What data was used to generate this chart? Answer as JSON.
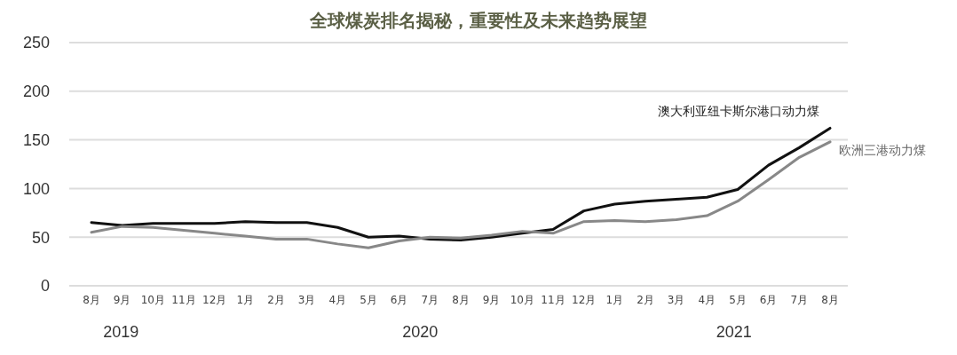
{
  "chart_data": {
    "type": "line",
    "title": "全球煤炭排名揭秘，重要性及未来趋势展望",
    "categories": [
      "8月",
      "9月",
      "10月",
      "11月",
      "12月",
      "1月",
      "2月",
      "3月",
      "4月",
      "5月",
      "6月",
      "7月",
      "8月",
      "9月",
      "10月",
      "11月",
      "12月",
      "1月",
      "2月",
      "3月",
      "4月",
      "5月",
      "6月",
      "7月",
      "8月"
    ],
    "series": [
      {
        "name": "澳大利亚纽卡斯尔港口动力煤",
        "color": "#111111",
        "values": [
          65,
          62,
          64,
          64,
          64,
          66,
          65,
          65,
          60,
          50,
          51,
          48,
          47,
          50,
          54,
          58,
          77,
          84,
          87,
          89,
          91,
          99,
          124,
          142,
          162
        ]
      },
      {
        "name": "欧洲三港动力煤",
        "color": "#888888",
        "values": [
          55,
          61,
          60,
          57,
          54,
          51,
          48,
          48,
          43,
          39,
          46,
          50,
          49,
          52,
          56,
          54,
          66,
          67,
          66,
          68,
          72,
          87,
          109,
          132,
          148
        ]
      }
    ],
    "ylim": [
      0,
      250
    ],
    "yticks": [
      0,
      50,
      100,
      150,
      200,
      250
    ],
    "grid": "y",
    "legend": false,
    "annotations": [
      "2019",
      "2020",
      "2021"
    ]
  }
}
